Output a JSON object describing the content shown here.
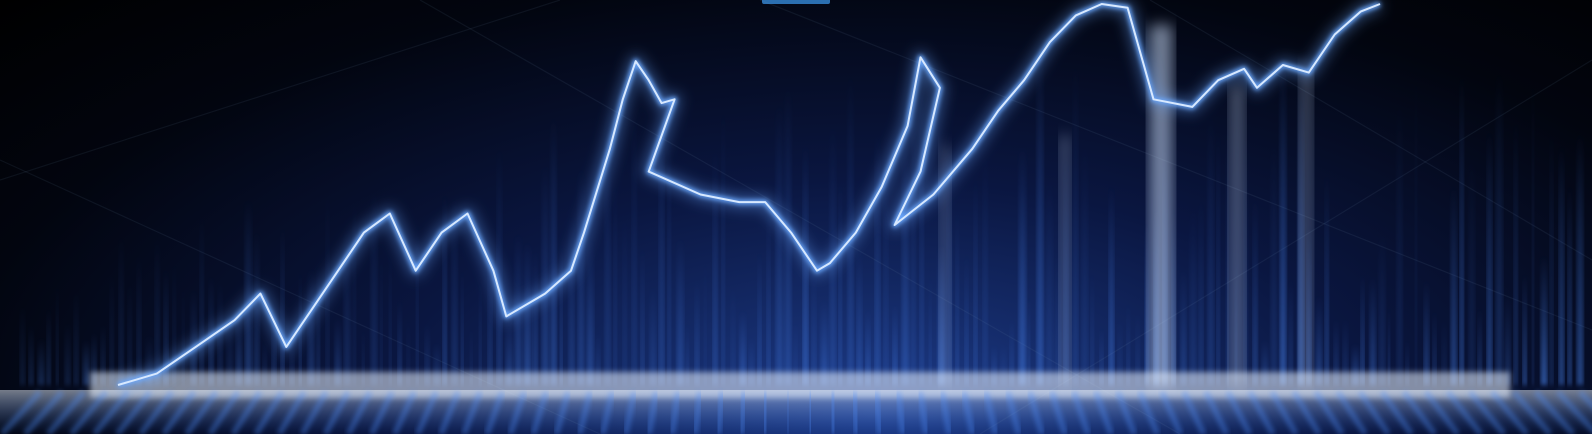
{
  "scene": {
    "description_tag": "abstract-financial-growth-graphic",
    "palette": {
      "background_dark": "#02050f",
      "background_glow": "#1d3c8a",
      "line_glow": "#6aa8ff",
      "line_core": "#d8e9ff",
      "bar_color": "#4f8fff",
      "floor_highlight": "#eaf3ff",
      "top_tab": "#2b6fb0"
    },
    "trend_line_shape": [
      [
        0.0,
        0.0
      ],
      [
        0.03,
        0.03
      ],
      [
        0.06,
        0.1
      ],
      [
        0.09,
        0.17
      ],
      [
        0.11,
        0.24
      ],
      [
        0.13,
        0.1
      ],
      [
        0.16,
        0.25
      ],
      [
        0.19,
        0.4
      ],
      [
        0.21,
        0.45
      ],
      [
        0.23,
        0.3
      ],
      [
        0.25,
        0.4
      ],
      [
        0.27,
        0.45
      ],
      [
        0.29,
        0.3
      ],
      [
        0.3,
        0.18
      ],
      [
        0.33,
        0.24
      ],
      [
        0.35,
        0.3
      ],
      [
        0.36,
        0.4
      ],
      [
        0.38,
        0.62
      ],
      [
        0.39,
        0.75
      ],
      [
        0.4,
        0.85
      ],
      [
        0.41,
        0.8
      ],
      [
        0.42,
        0.74
      ],
      [
        0.43,
        0.75
      ],
      [
        0.41,
        0.56
      ],
      [
        0.45,
        0.5
      ],
      [
        0.48,
        0.48
      ],
      [
        0.5,
        0.48
      ],
      [
        0.52,
        0.4
      ],
      [
        0.54,
        0.3
      ],
      [
        0.55,
        0.32
      ],
      [
        0.57,
        0.4
      ],
      [
        0.59,
        0.52
      ],
      [
        0.61,
        0.68
      ],
      [
        0.62,
        0.86
      ],
      [
        0.635,
        0.78
      ],
      [
        0.62,
        0.56
      ],
      [
        0.6,
        0.42
      ],
      [
        0.63,
        0.5
      ],
      [
        0.66,
        0.62
      ],
      [
        0.68,
        0.72
      ],
      [
        0.7,
        0.8
      ],
      [
        0.72,
        0.9
      ],
      [
        0.74,
        0.97
      ],
      [
        0.76,
        1.0
      ],
      [
        0.78,
        0.99
      ],
      [
        0.8,
        0.75
      ],
      [
        0.83,
        0.73
      ],
      [
        0.85,
        0.8
      ],
      [
        0.87,
        0.83
      ],
      [
        0.88,
        0.78
      ],
      [
        0.9,
        0.84
      ],
      [
        0.92,
        0.82
      ],
      [
        0.94,
        0.92
      ],
      [
        0.96,
        0.98
      ],
      [
        0.975,
        1.0
      ]
    ]
  }
}
